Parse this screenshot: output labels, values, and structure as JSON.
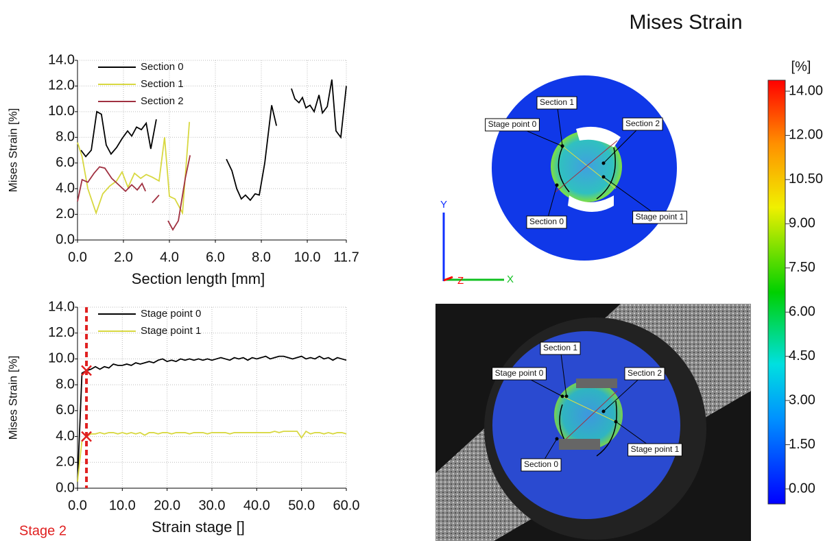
{
  "title": "Mises Strain",
  "colorbar": {
    "unit": "[%]",
    "ticks": [
      {
        "value": 0,
        "label": "0.00"
      },
      {
        "value": 1.5,
        "label": "1.50"
      },
      {
        "value": 3,
        "label": "3.00"
      },
      {
        "value": 4.5,
        "label": "4.50"
      },
      {
        "value": 6,
        "label": "6.00"
      },
      {
        "value": 7.5,
        "label": "7.50"
      },
      {
        "value": 9,
        "label": "9.00"
      },
      {
        "value": 10.5,
        "label": "10.50"
      },
      {
        "value": 12,
        "label": "12.00"
      },
      {
        "value": 14,
        "label": "14.00"
      }
    ]
  },
  "triad": {
    "y": "Y",
    "z": "Z",
    "x": "X"
  },
  "maps": [
    {
      "labels": [
        "Section 1",
        "Stage point 0",
        "Section 2",
        "Section 0",
        "Stage point 1"
      ]
    },
    {
      "labels": [
        "Section 1",
        "Stage point 0",
        "Section 2",
        "Section 0",
        "Stage point 1"
      ]
    }
  ],
  "chart_data": [
    {
      "type": "line",
      "xlabel": "Section length [mm]",
      "ylabel": "Mises Strain [%]",
      "xlim": [
        0,
        11.7
      ],
      "ylim": [
        0,
        14
      ],
      "xticks": [
        {
          "value": 0,
          "label": "0.0"
        },
        {
          "value": 2,
          "label": "2.0"
        },
        {
          "value": 4,
          "label": "4.0"
        },
        {
          "value": 6,
          "label": "6.0"
        },
        {
          "value": 8,
          "label": "8.0"
        },
        {
          "value": 10,
          "label": "10.0"
        },
        11.7
      ],
      "yticks": [
        {
          "value": 0,
          "label": "0.0"
        },
        {
          "value": 2,
          "label": "2.0"
        },
        {
          "value": 4,
          "label": "4.0"
        },
        {
          "value": 6,
          "label": "6.0"
        },
        {
          "value": 8,
          "label": "8.0"
        },
        {
          "value": 10,
          "label": "10.0"
        },
        {
          "value": 12,
          "label": "12.0"
        },
        {
          "value": 14,
          "label": "14.0"
        }
      ],
      "grid": true,
      "legend": "upper left",
      "series": [
        {
          "name": "Section 0",
          "color": "#000000",
          "x": [
            0.15,
            0.36,
            0.6,
            0.84,
            1.04,
            1.25,
            1.46,
            1.7,
            1.94,
            2.18,
            2.36,
            2.57,
            2.78,
            2.99,
            3.19,
            3.43,
            5.0,
            6.48,
            6.72,
            6.93,
            7.13,
            7.31,
            7.52,
            7.73,
            7.91,
            8.15,
            8.45,
            8.66,
            9.0,
            9.31,
            9.46,
            9.64,
            9.79,
            9.94,
            10.12,
            10.3,
            10.51,
            10.66,
            10.87,
            11.07,
            11.25,
            11.46,
            11.7
          ],
          "values": [
            7.0,
            6.5,
            7.0,
            10.0,
            9.8,
            7.4,
            6.7,
            7.2,
            7.9,
            8.5,
            8.1,
            8.8,
            8.6,
            9.1,
            7.1,
            9.4,
            null,
            6.3,
            5.4,
            4.0,
            3.2,
            3.5,
            3.1,
            3.6,
            3.5,
            6.0,
            10.5,
            8.9,
            null,
            11.8,
            11.0,
            10.7,
            11.1,
            10.3,
            10.5,
            10.0,
            11.3,
            9.9,
            10.4,
            12.5,
            8.5,
            8.0,
            12.0
          ]
        },
        {
          "name": "Section 1",
          "color": "#d8d840",
          "x": [
            0,
            0.2,
            0.45,
            0.81,
            1.1,
            1.4,
            1.7,
            1.94,
            2.2,
            2.48,
            2.75,
            2.99,
            3.25,
            3.55,
            3.79,
            4.0,
            4.24,
            4.57,
            4.87
          ],
          "values": [
            7.6,
            6.5,
            4.0,
            2.1,
            3.6,
            4.2,
            4.6,
            5.3,
            4.1,
            5.2,
            4.8,
            5.1,
            4.9,
            4.6,
            8.0,
            3.4,
            3.2,
            2.1,
            9.2
          ]
        },
        {
          "name": "Section 2",
          "color": "#a03040",
          "x": [
            0,
            0.2,
            0.45,
            0.72,
            0.96,
            1.19,
            1.49,
            1.79,
            2.09,
            2.36,
            2.6,
            2.81,
            2.96,
            3.1,
            3.25,
            3.55,
            3.75,
            3.94,
            4.15,
            4.39,
            4.69,
            4.9
          ],
          "values": [
            3.0,
            4.7,
            4.5,
            5.2,
            5.7,
            5.6,
            4.8,
            4.3,
            3.8,
            4.3,
            3.9,
            4.4,
            3.8,
            null,
            2.9,
            3.5,
            null,
            1.5,
            0.8,
            1.5,
            4.8,
            6.6
          ]
        }
      ]
    },
    {
      "type": "line",
      "xlabel": "Strain stage []",
      "ylabel": "Mises Strain [%]",
      "xlim": [
        0,
        60
      ],
      "ylim": [
        0,
        14
      ],
      "xticks": [
        {
          "value": 0,
          "label": "0.0"
        },
        {
          "value": 10,
          "label": "10.0"
        },
        {
          "value": 20,
          "label": "20.0"
        },
        {
          "value": 30,
          "label": "30.0"
        },
        {
          "value": 40,
          "label": "40.0"
        },
        {
          "value": 50,
          "label": "50.0"
        },
        {
          "value": 60,
          "label": "60.0"
        }
      ],
      "yticks": [
        {
          "value": 0,
          "label": "0.0"
        },
        {
          "value": 2,
          "label": "2.0"
        },
        {
          "value": 4,
          "label": "4.0"
        },
        {
          "value": 6,
          "label": "6.0"
        },
        {
          "value": 8,
          "label": "8.0"
        },
        {
          "value": 10,
          "label": "10.0"
        },
        {
          "value": 12,
          "label": "12.0"
        },
        {
          "value": 14,
          "label": "14.0"
        }
      ],
      "grid": true,
      "legend": "upper left",
      "current_stage": 2,
      "stage_label": "Stage 2",
      "marker_color": "#e02020",
      "x": [
        0,
        1,
        2,
        3,
        4,
        5,
        6,
        7,
        8,
        9,
        10,
        11,
        12,
        13,
        14,
        15,
        16,
        17,
        18,
        19,
        20,
        21,
        22,
        23,
        24,
        25,
        26,
        27,
        28,
        29,
        30,
        31,
        32,
        33,
        34,
        35,
        36,
        37,
        38,
        39,
        40,
        41,
        42,
        43,
        44,
        45,
        46,
        47,
        48,
        49,
        50,
        51,
        52,
        53,
        54,
        55,
        56,
        57,
        58,
        59,
        60
      ],
      "series": [
        {
          "name": "Stage point 0",
          "color": "#000000",
          "values": [
            0.5,
            8.9,
            9.1,
            9.2,
            9.4,
            9.2,
            9.4,
            9.3,
            9.6,
            9.5,
            9.5,
            9.6,
            9.5,
            9.7,
            9.6,
            9.7,
            9.8,
            9.7,
            9.9,
            10.0,
            9.8,
            9.9,
            9.8,
            10.0,
            9.9,
            10.0,
            9.9,
            10.0,
            9.9,
            10.0,
            9.9,
            10.0,
            10.1,
            10.0,
            9.9,
            10.1,
            10.0,
            10.1,
            9.9,
            10.1,
            10.0,
            10.1,
            10.2,
            10.0,
            10.1,
            10.2,
            10.2,
            10.1,
            10.0,
            10.1,
            10.2,
            10.0,
            10.1,
            10.0,
            10.2,
            10.0,
            10.1,
            9.9,
            10.1,
            10.0,
            9.9
          ]
        },
        {
          "name": "Stage point 1",
          "color": "#d8d840",
          "values": [
            0.5,
            3.7,
            4.0,
            4.2,
            4.2,
            4.3,
            4.2,
            4.3,
            4.3,
            4.2,
            4.3,
            4.2,
            4.3,
            4.2,
            4.3,
            4.1,
            4.3,
            4.3,
            4.2,
            4.3,
            4.3,
            4.2,
            4.3,
            4.3,
            4.3,
            4.2,
            4.3,
            4.3,
            4.3,
            4.2,
            4.3,
            4.3,
            4.3,
            4.3,
            4.2,
            4.3,
            4.3,
            4.3,
            4.3,
            4.3,
            4.3,
            4.3,
            4.3,
            4.3,
            4.4,
            4.3,
            4.4,
            4.4,
            4.4,
            4.4,
            3.9,
            4.4,
            4.2,
            4.3,
            4.3,
            4.2,
            4.3,
            4.2,
            4.3,
            4.3,
            4.2
          ]
        }
      ]
    }
  ]
}
